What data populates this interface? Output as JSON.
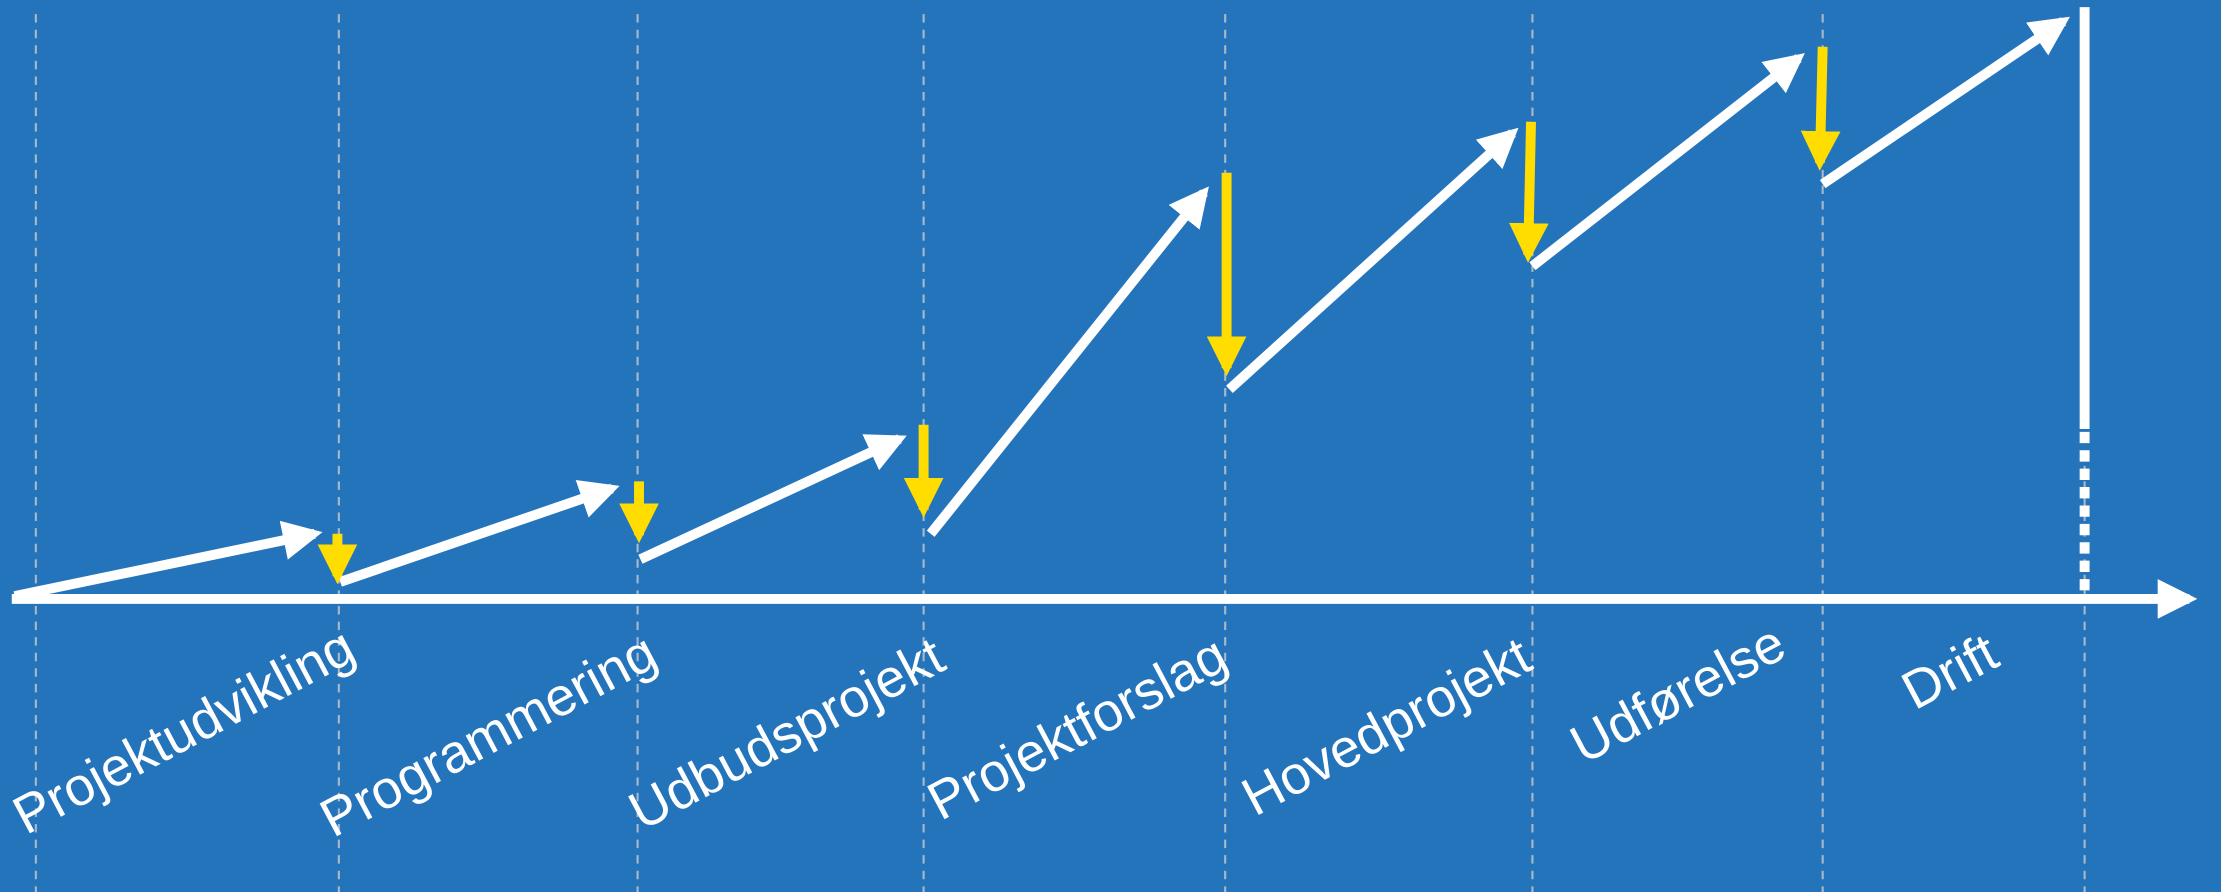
{
  "phases": [
    "Projektudvikling",
    "Programmering",
    "Udbudsprojekt",
    "Projektforslag",
    "Hovedprojekt",
    "Udførelse",
    "Drift"
  ]
}
